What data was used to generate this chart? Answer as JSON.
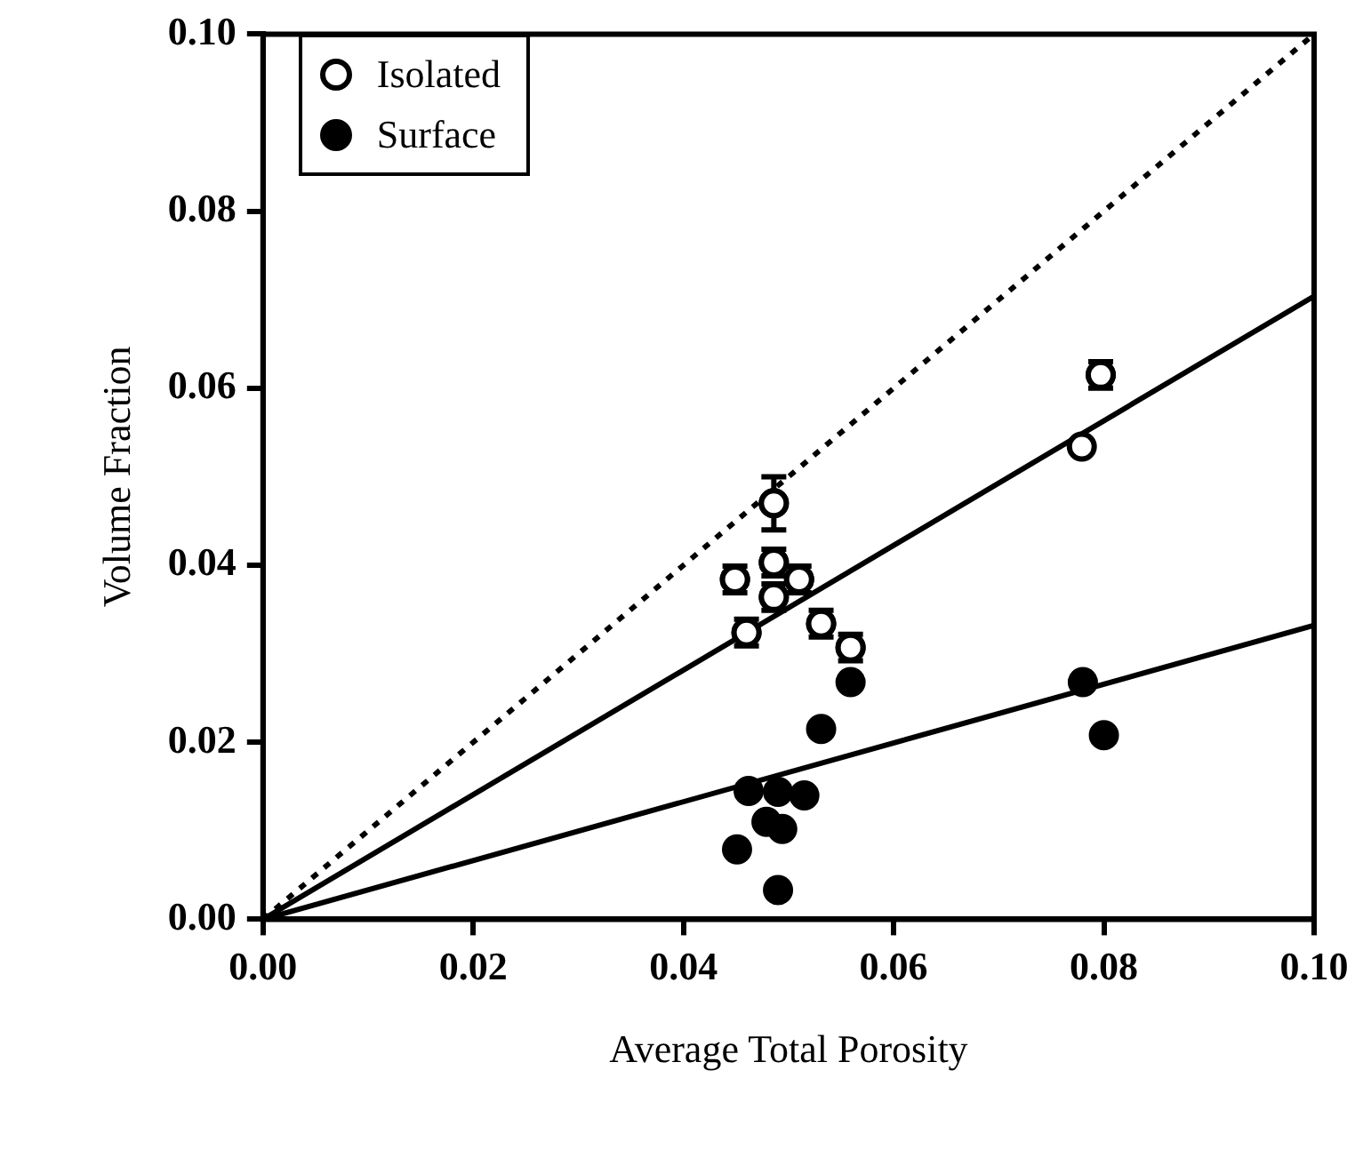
{
  "chart_data": {
    "type": "scatter",
    "xlabel": "Average Total Porosity",
    "ylabel": "Volume Fraction",
    "xlim": [
      0,
      0.1
    ],
    "ylim": [
      0,
      0.1
    ],
    "xticks": [
      {
        "value": 0,
        "label": "0.00"
      },
      {
        "value": 0.02,
        "label": "0.02"
      },
      {
        "value": 0.04,
        "label": "0.04"
      },
      {
        "value": 0.06,
        "label": "0.06"
      },
      {
        "value": 0.08,
        "label": "0.08"
      },
      {
        "value": 0.1,
        "label": "0.10"
      }
    ],
    "yticks": [
      {
        "value": 0,
        "label": "0.00"
      },
      {
        "value": 0.02,
        "label": "0.02"
      },
      {
        "value": 0.04,
        "label": "0.04"
      },
      {
        "value": 0.06,
        "label": "0.06"
      },
      {
        "value": 0.08,
        "label": "0.08"
      },
      {
        "value": 0.1,
        "label": "0.10"
      }
    ],
    "grid": false,
    "legend": "top left",
    "series": [
      {
        "name": "Isolated",
        "marker": "circle",
        "color": "#ffffff",
        "x": [
          0.0449,
          0.046,
          0.0486,
          0.0486,
          0.0486,
          0.051,
          0.0531,
          0.0559,
          0.0779,
          0.0797
        ],
        "values": [
          0.0384,
          0.0324,
          0.0403,
          0.0364,
          0.047,
          0.0384,
          0.0334,
          0.0307,
          0.0534,
          0.0615
        ],
        "errors": [
          0.0015,
          0.0015,
          0.0015,
          0.0015,
          0.003,
          0.0015,
          0.0015,
          0.0015,
          null,
          0.0015
        ]
      },
      {
        "name": "Surface",
        "marker": "circle",
        "color": "#000000",
        "x": [
          0.0462,
          0.049,
          0.0515,
          0.0479,
          0.0494,
          0.0451,
          0.049,
          0.0531,
          0.0559,
          0.078,
          0.08
        ],
        "values": [
          0.0145,
          0.0144,
          0.014,
          0.011,
          0.0102,
          0.0079,
          0.0033,
          0.0215,
          0.0268,
          0.0268,
          0.0208
        ]
      },
      {
        "type": "line",
        "marker": "none",
        "color": "#000000",
        "line_style": "solid",
        "x": [
          0,
          0.1
        ],
        "values": [
          0,
          0.0704
        ]
      },
      {
        "type": "line",
        "marker": "none",
        "color": "#000000",
        "line_style": "solid",
        "x": [
          0,
          0.1
        ],
        "values": [
          0,
          0.0332
        ]
      },
      {
        "type": "line",
        "marker": "none",
        "color": "#000000",
        "line_style": "dotted",
        "x": [
          0,
          0.1
        ],
        "values": [
          0,
          0.1
        ]
      }
    ]
  }
}
